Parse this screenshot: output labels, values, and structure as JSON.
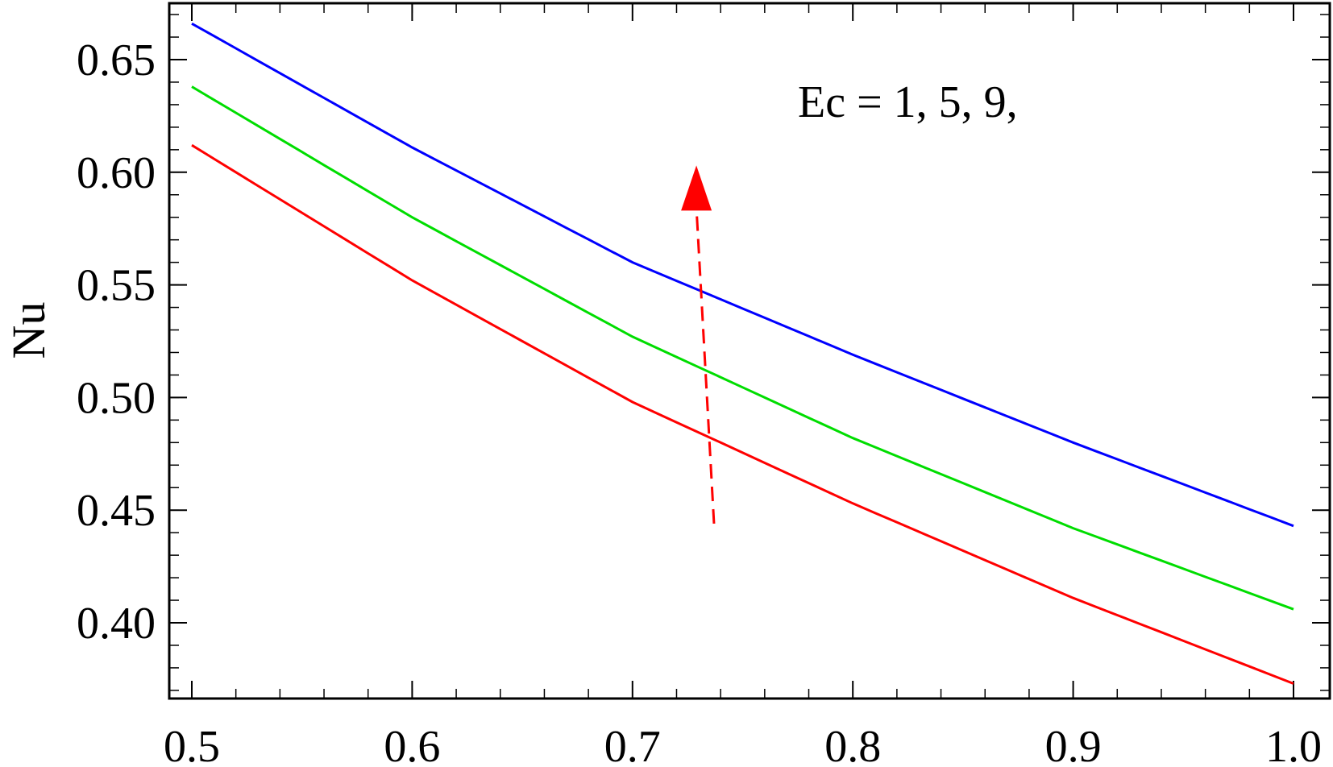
{
  "chart_data": {
    "type": "line",
    "title": "",
    "xlabel": "",
    "ylabel": "Nu",
    "xlim": [
      0.49,
      1.0
    ],
    "ylim": [
      0.365,
      0.675
    ],
    "x_ticks": [
      "0.5",
      "0.6",
      "0.7",
      "0.8",
      "0.9",
      "1.0"
    ],
    "y_ticks": [
      "0.40",
      "0.45",
      "0.50",
      "0.55",
      "0.60",
      "0.65"
    ],
    "grid": false,
    "legend": "none",
    "annotation": "Ec = 1, 5, 9,",
    "arrow": {
      "from": [
        0.737,
        0.444
      ],
      "to": [
        0.729,
        0.603
      ],
      "color": "#ff0000",
      "style": "dashed"
    },
    "x": [
      0.5,
      0.6,
      0.7,
      0.8,
      0.9,
      1.0
    ],
    "series": [
      {
        "color": "#ff0000",
        "values": [
          0.612,
          0.552,
          0.498,
          0.453,
          0.411,
          0.373
        ]
      },
      {
        "color": "#00dd00",
        "values": [
          0.638,
          0.58,
          0.527,
          0.482,
          0.442,
          0.406
        ]
      },
      {
        "color": "#0000ff",
        "values": [
          0.666,
          0.611,
          0.56,
          0.519,
          0.48,
          0.443
        ]
      }
    ]
  }
}
